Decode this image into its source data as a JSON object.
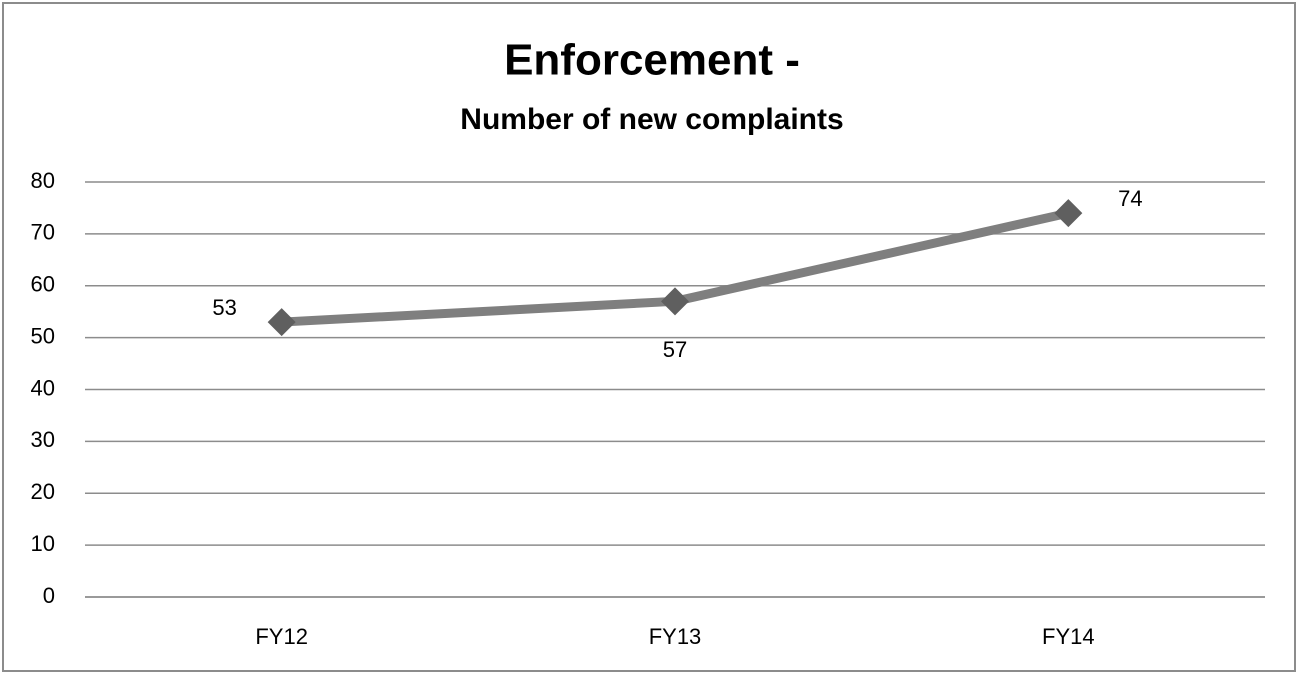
{
  "chart_data": {
    "type": "line",
    "title": "Enforcement -",
    "subtitle": "Number of new complaints",
    "categories": [
      "FY12",
      "FY13",
      "FY14"
    ],
    "values": [
      53,
      57,
      74
    ],
    "color": "#7f7f7f",
    "marker_color": "#5f5f5f",
    "ylim": [
      0,
      80
    ],
    "yticks": [
      0,
      10,
      20,
      30,
      40,
      50,
      60,
      70,
      80
    ],
    "grid": true
  }
}
